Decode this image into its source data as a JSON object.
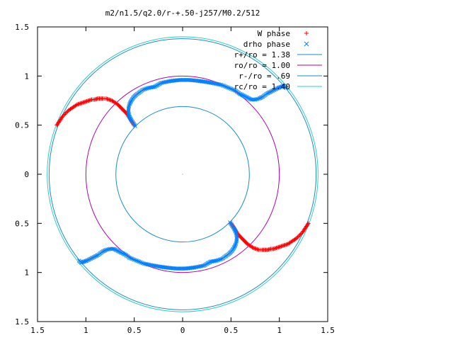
{
  "chart_data": {
    "type": "scatter",
    "title": "m2/n1.5/q2.0/r-+.50-j257/M0.2/512",
    "xlabel": "",
    "ylabel": "",
    "xlim": [
      -1.5,
      1.5
    ],
    "ylim": [
      -1.5,
      1.5
    ],
    "x_tick_labels": [
      "1.5",
      "1",
      "0.5",
      "0",
      "0.5",
      "1",
      "1.5"
    ],
    "y_tick_labels": [
      "1.5",
      "1",
      "0.5",
      "0",
      "0.5",
      "1",
      "1.5"
    ],
    "x_ticks": [
      -1.5,
      -1.0,
      -0.5,
      0,
      0.5,
      1.0,
      1.5
    ],
    "y_ticks": [
      1.5,
      1.0,
      0.5,
      0,
      -0.5,
      -1.0,
      -1.5
    ],
    "grid": false,
    "legend_position": "top-right",
    "legend": [
      {
        "label": "W phase",
        "marker": "plus",
        "color": "#ff0000"
      },
      {
        "label": "drho phase",
        "marker": "cross",
        "color": "#0080ff"
      },
      {
        "label": "r+/ro = 1.38",
        "marker": "line",
        "color": "#1a8fc6"
      },
      {
        "label": "ro/ro = 1.00",
        "marker": "line",
        "color": "#b000b0"
      },
      {
        "label": "r-/ro = .69",
        "marker": "line",
        "color": "#1a8fc6"
      },
      {
        "label": "rc/ro = 1.40",
        "marker": "line",
        "color": "#33cccc"
      }
    ],
    "circles": [
      {
        "name": "r+/ro",
        "radius": 1.38,
        "color": "#1a8fc6"
      },
      {
        "name": "ro/ro",
        "radius": 1.0,
        "color": "#b000b0"
      },
      {
        "name": "r-/ro",
        "radius": 0.69,
        "color": "#1a8fc6"
      },
      {
        "name": "rc/ro",
        "radius": 1.4,
        "color": "#33cccc"
      }
    ],
    "series": [
      {
        "name": "W phase",
        "marker": "plus",
        "color": "#ff0000",
        "points": [
          [
            -1.3,
            0.5
          ],
          [
            -1.28,
            0.53
          ],
          [
            -1.26,
            0.56
          ],
          [
            -1.24,
            0.59
          ],
          [
            -1.22,
            0.61
          ],
          [
            -1.2,
            0.63
          ],
          [
            -1.18,
            0.65
          ],
          [
            -1.15,
            0.67
          ],
          [
            -1.12,
            0.69
          ],
          [
            -1.09,
            0.71
          ],
          [
            -1.06,
            0.72
          ],
          [
            -1.03,
            0.73
          ],
          [
            -1.0,
            0.74
          ],
          [
            -0.97,
            0.75
          ],
          [
            -0.94,
            0.76
          ],
          [
            -0.91,
            0.76
          ],
          [
            -0.88,
            0.77
          ],
          [
            -0.85,
            0.77
          ],
          [
            -0.82,
            0.77
          ],
          [
            -0.79,
            0.77
          ],
          [
            -0.76,
            0.76
          ],
          [
            -0.73,
            0.75
          ],
          [
            -0.7,
            0.73
          ],
          [
            -0.67,
            0.71
          ],
          [
            -0.64,
            0.68
          ],
          [
            -0.61,
            0.65
          ],
          [
            -0.58,
            0.62
          ],
          [
            -0.56,
            0.59
          ],
          [
            -0.54,
            0.56
          ],
          [
            -0.52,
            0.53
          ],
          [
            -0.5,
            0.5
          ],
          [
            1.3,
            -0.5
          ],
          [
            1.28,
            -0.53
          ],
          [
            1.26,
            -0.56
          ],
          [
            1.24,
            -0.59
          ],
          [
            1.22,
            -0.61
          ],
          [
            1.2,
            -0.63
          ],
          [
            1.18,
            -0.65
          ],
          [
            1.15,
            -0.67
          ],
          [
            1.12,
            -0.69
          ],
          [
            1.09,
            -0.71
          ],
          [
            1.06,
            -0.72
          ],
          [
            1.03,
            -0.73
          ],
          [
            1.0,
            -0.74
          ],
          [
            0.97,
            -0.75
          ],
          [
            0.94,
            -0.76
          ],
          [
            0.91,
            -0.76
          ],
          [
            0.88,
            -0.77
          ],
          [
            0.85,
            -0.77
          ],
          [
            0.82,
            -0.77
          ],
          [
            0.79,
            -0.77
          ],
          [
            0.76,
            -0.76
          ],
          [
            0.73,
            -0.75
          ],
          [
            0.7,
            -0.73
          ],
          [
            0.67,
            -0.71
          ],
          [
            0.64,
            -0.68
          ],
          [
            0.61,
            -0.65
          ],
          [
            0.58,
            -0.62
          ],
          [
            0.56,
            -0.59
          ],
          [
            0.54,
            -0.56
          ],
          [
            0.52,
            -0.53
          ],
          [
            0.5,
            -0.5
          ]
        ]
      },
      {
        "name": "drho phase",
        "marker": "cross",
        "color": "#0080ff",
        "points": [
          [
            -0.49,
            0.49
          ],
          [
            -0.51,
            0.52
          ],
          [
            -0.53,
            0.55
          ],
          [
            -0.55,
            0.59
          ],
          [
            -0.56,
            0.63
          ],
          [
            -0.56,
            0.67
          ],
          [
            -0.55,
            0.71
          ],
          [
            -0.53,
            0.75
          ],
          [
            -0.51,
            0.78
          ],
          [
            -0.48,
            0.81
          ],
          [
            -0.45,
            0.83
          ],
          [
            -0.41,
            0.86
          ],
          [
            -0.35,
            0.88
          ],
          [
            -0.29,
            0.89
          ],
          [
            -0.22,
            0.93
          ],
          [
            -0.12,
            0.95
          ],
          [
            -0.03,
            0.96
          ],
          [
            0.07,
            0.96
          ],
          [
            0.17,
            0.95
          ],
          [
            0.24,
            0.94
          ],
          [
            0.3,
            0.93
          ],
          [
            0.35,
            0.92
          ],
          [
            0.4,
            0.91
          ],
          [
            0.45,
            0.89
          ],
          [
            0.5,
            0.87
          ],
          [
            0.55,
            0.85
          ],
          [
            0.59,
            0.82
          ],
          [
            0.63,
            0.8
          ],
          [
            0.67,
            0.78
          ],
          [
            0.71,
            0.76
          ],
          [
            0.75,
            0.76
          ],
          [
            0.79,
            0.77
          ],
          [
            0.83,
            0.79
          ],
          [
            0.87,
            0.82
          ],
          [
            0.91,
            0.84
          ],
          [
            0.95,
            0.86
          ],
          [
            0.99,
            0.88
          ],
          [
            1.02,
            0.89
          ],
          [
            1.05,
            0.9
          ],
          [
            1.07,
            0.88
          ],
          [
            0.49,
            -0.49
          ],
          [
            0.51,
            -0.52
          ],
          [
            0.53,
            -0.55
          ],
          [
            0.55,
            -0.59
          ],
          [
            0.56,
            -0.63
          ],
          [
            0.56,
            -0.67
          ],
          [
            0.55,
            -0.71
          ],
          [
            0.53,
            -0.75
          ],
          [
            0.51,
            -0.78
          ],
          [
            0.48,
            -0.81
          ],
          [
            0.45,
            -0.83
          ],
          [
            0.41,
            -0.86
          ],
          [
            0.35,
            -0.88
          ],
          [
            0.29,
            -0.89
          ],
          [
            0.22,
            -0.93
          ],
          [
            0.12,
            -0.95
          ],
          [
            0.03,
            -0.96
          ],
          [
            -0.07,
            -0.96
          ],
          [
            -0.17,
            -0.95
          ],
          [
            -0.24,
            -0.94
          ],
          [
            -0.3,
            -0.93
          ],
          [
            -0.35,
            -0.92
          ],
          [
            -0.4,
            -0.91
          ],
          [
            -0.45,
            -0.89
          ],
          [
            -0.5,
            -0.87
          ],
          [
            -0.55,
            -0.85
          ],
          [
            -0.59,
            -0.82
          ],
          [
            -0.63,
            -0.8
          ],
          [
            -0.67,
            -0.78
          ],
          [
            -0.71,
            -0.76
          ],
          [
            -0.75,
            -0.76
          ],
          [
            -0.79,
            -0.77
          ],
          [
            -0.83,
            -0.79
          ],
          [
            -0.87,
            -0.82
          ],
          [
            -0.91,
            -0.84
          ],
          [
            -0.95,
            -0.86
          ],
          [
            -0.99,
            -0.88
          ],
          [
            -1.02,
            -0.89
          ],
          [
            -1.05,
            -0.9
          ],
          [
            -1.07,
            -0.88
          ]
        ]
      }
    ]
  }
}
